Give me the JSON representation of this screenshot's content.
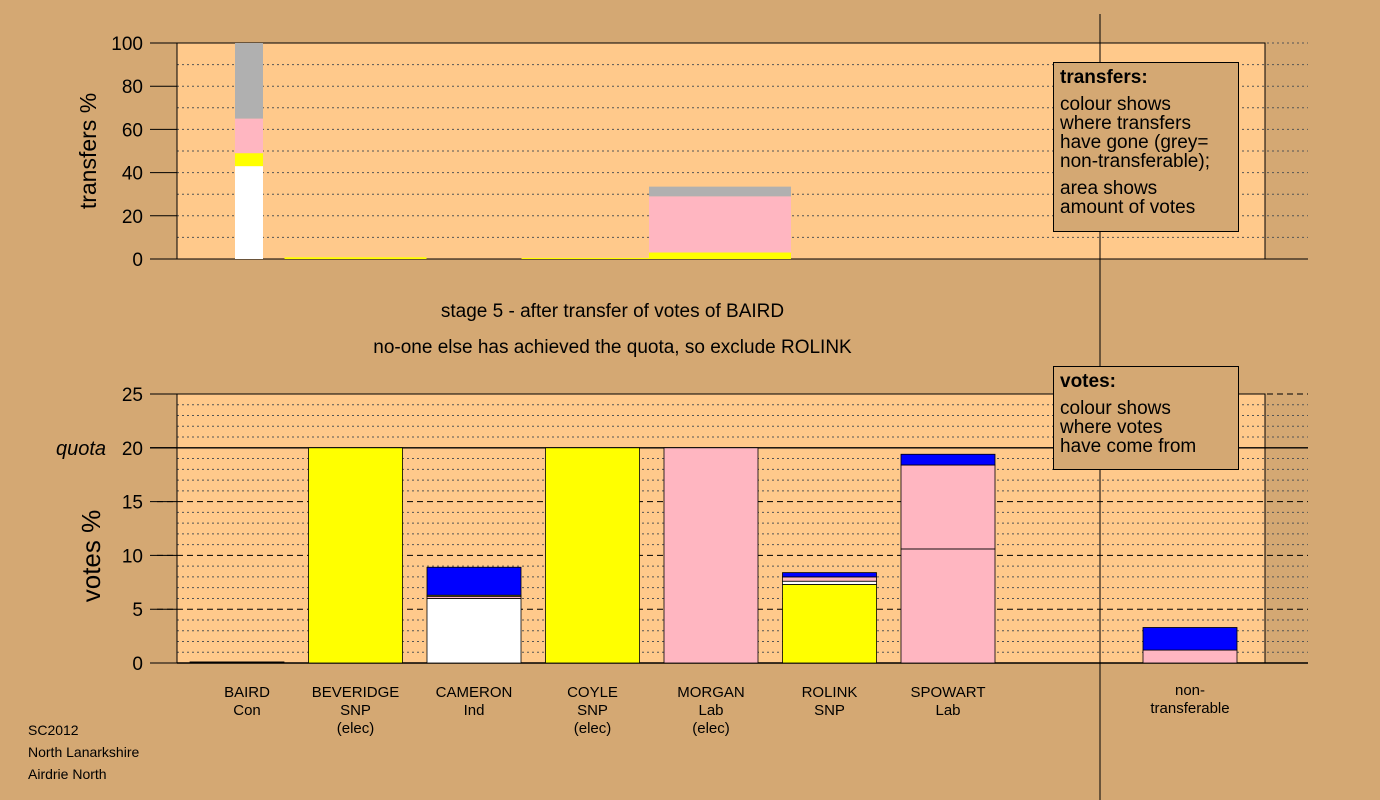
{
  "chart_data": {
    "type": "bar",
    "stage_title": "stage 5 - after transfer of votes of BAIRD",
    "stage_subtitle": "no-one else has achieved the quota, so exclude ROLINK",
    "categories": [
      {
        "name": "BAIRD",
        "party": "Con",
        "status": ""
      },
      {
        "name": "BEVERIDGE",
        "party": "SNP",
        "status": "(elec)"
      },
      {
        "name": "CAMERON",
        "party": "Ind",
        "status": ""
      },
      {
        "name": "COYLE",
        "party": "SNP",
        "status": "(elec)"
      },
      {
        "name": "MORGAN",
        "party": "Lab",
        "status": "(elec)"
      },
      {
        "name": "ROLINK",
        "party": "SNP",
        "status": ""
      },
      {
        "name": "SPOWART",
        "party": "Lab",
        "status": ""
      },
      {
        "name": "non-",
        "party": "transferable",
        "status": ""
      }
    ],
    "transfers": {
      "ylabel": "transfers %",
      "ylim": [
        0,
        100
      ],
      "yticks": [
        0,
        20,
        40,
        60,
        80,
        100
      ],
      "bars": [
        {
          "index": 0,
          "width": "wide",
          "segments": [
            {
              "color": "#ffffff",
              "from": 0,
              "to": 43
            },
            {
              "color": "#ffff00",
              "from": 43,
              "to": 49
            },
            {
              "color": "#ffb6c1",
              "from": 49,
              "to": 65
            },
            {
              "color": "#b0b0b0",
              "from": 65,
              "to": 100
            }
          ]
        },
        {
          "index": 1,
          "width": "full",
          "segments": [
            {
              "color": "#ffff00",
              "from": 0,
              "to": 0.8
            }
          ]
        },
        {
          "index": 3,
          "width": "full",
          "segments": [
            {
              "color": "#ffff00",
              "from": 0,
              "to": 0.5
            }
          ]
        },
        {
          "index": 4,
          "width": "full",
          "segments": [
            {
              "color": "#ffff00",
              "from": 0,
              "to": 3
            }
          ]
        },
        {
          "index": 4,
          "width": "full",
          "segments": [
            {
              "color": "#ffb6c1",
              "from": 3,
              "to": 29
            },
            {
              "color": "#b0b0b0",
              "from": 29,
              "to": 33.5
            }
          ]
        }
      ]
    },
    "votes": {
      "ylabel": "votes %",
      "ylim": [
        0,
        25
      ],
      "yticks": [
        0,
        5,
        10,
        15,
        20,
        25
      ],
      "quota": 20,
      "quota_label": "quota",
      "bars": [
        {
          "index": 0,
          "segments": [
            {
              "color": "#000000",
              "from": 0,
              "to": 0.1
            }
          ]
        },
        {
          "index": 1,
          "segments": [
            {
              "color": "#ffff00",
              "from": 0,
              "to": 20
            }
          ]
        },
        {
          "index": 2,
          "segments": [
            {
              "color": "#ffffff",
              "from": 0,
              "to": 6.0
            },
            {
              "color": "#ffb6c1",
              "from": 6.0,
              "to": 6.2
            },
            {
              "color": "#ffff00",
              "from": 6.2,
              "to": 6.3
            },
            {
              "color": "#0000ff",
              "from": 6.3,
              "to": 8.9
            }
          ]
        },
        {
          "index": 3,
          "segments": [
            {
              "color": "#ffff00",
              "from": 0,
              "to": 20
            }
          ]
        },
        {
          "index": 4,
          "segments": [
            {
              "color": "#ffb6c1",
              "from": 0,
              "to": 20
            }
          ]
        },
        {
          "index": 5,
          "segments": [
            {
              "color": "#ffff00",
              "from": 0,
              "to": 7.3
            },
            {
              "color": "#ffffff",
              "from": 7.3,
              "to": 7.6
            },
            {
              "color": "#ffb6c1",
              "from": 7.6,
              "to": 8.0
            },
            {
              "color": "#0000ff",
              "from": 8.0,
              "to": 8.4
            }
          ]
        },
        {
          "index": 6,
          "segments": [
            {
              "color": "#ffb6c1",
              "from": 0,
              "to": 10.6
            },
            {
              "color": "#ffb6c1",
              "from": 10.6,
              "to": 18.4
            },
            {
              "color": "#0000ff",
              "from": 18.4,
              "to": 19.4
            }
          ]
        },
        {
          "index": 7,
          "segments": [
            {
              "color": "#ffb6c1",
              "from": 0,
              "to": 1.2
            },
            {
              "color": "#0000ff",
              "from": 1.2,
              "to": 3.3
            }
          ]
        }
      ]
    }
  },
  "legend_transfers": {
    "heading": "transfers:",
    "line1": "colour shows",
    "line2": "where transfers",
    "line3": "have gone (grey=",
    "line4": "non-transferable);",
    "line5": "area shows",
    "line6": "amount of votes"
  },
  "legend_votes": {
    "heading": "votes:",
    "line1": "colour shows",
    "line2": "where votes",
    "line3": "have come from"
  },
  "footer": {
    "line1": "SC2012",
    "line2": "North Lanarkshire",
    "line3": "Airdrie North"
  },
  "colors": {
    "background": "#d4a873",
    "plot_background": "#ffc98b"
  }
}
